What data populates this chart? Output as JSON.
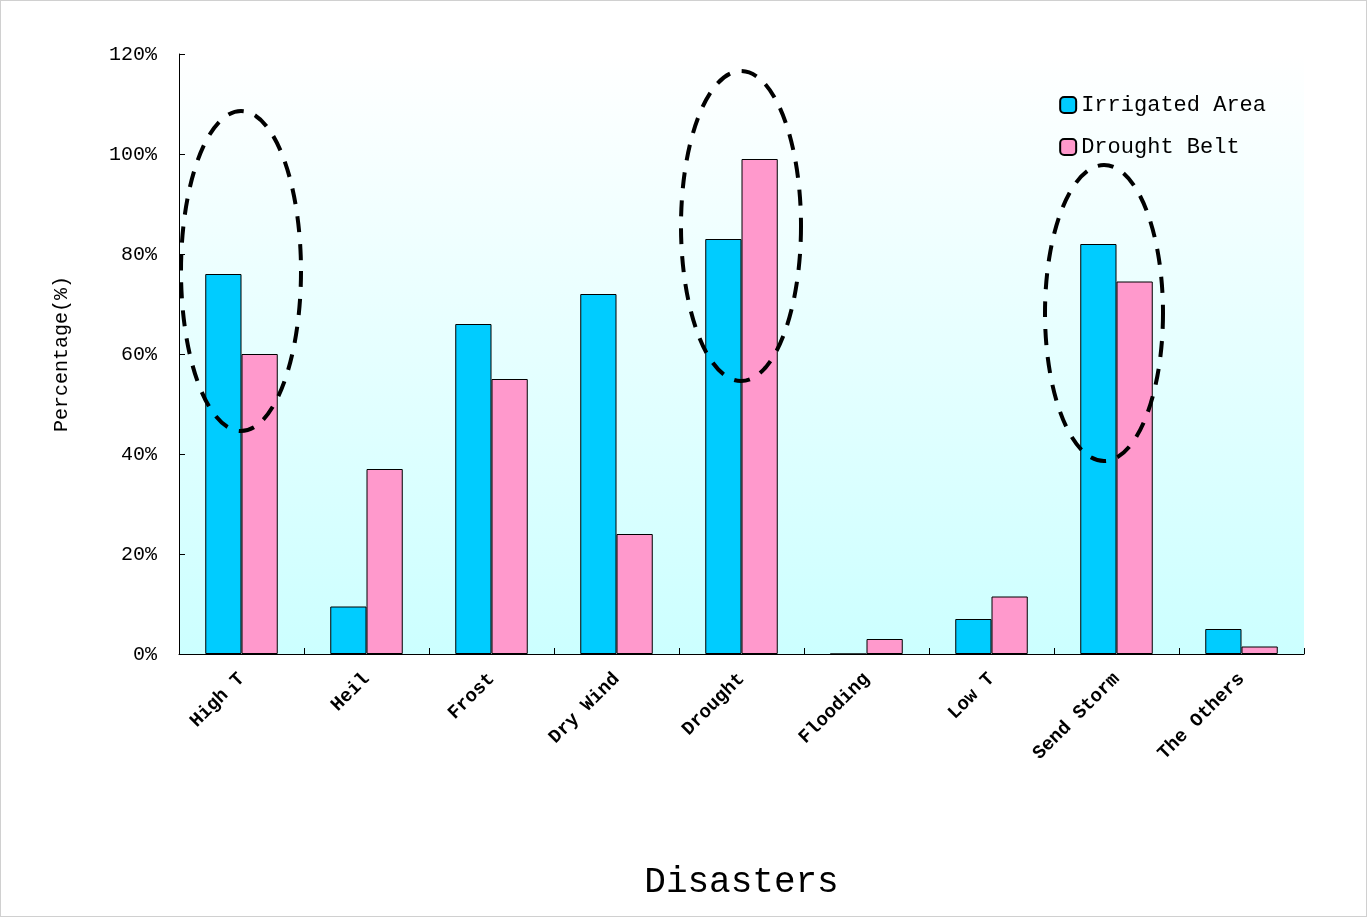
{
  "chart_data": {
    "type": "bar",
    "xlabel": "Disasters",
    "ylabel": "Percentage(%)",
    "categories": [
      "High T",
      "Heil",
      "Frost",
      "Dry Wind",
      "Drought",
      "Flooding",
      "Low T",
      "Send Storm",
      "The Others"
    ],
    "series": [
      {
        "name": "Irrigated Area",
        "color": "#00ccff",
        "values": [
          76,
          9.5,
          66,
          72,
          83,
          0,
          7,
          82,
          5
        ]
      },
      {
        "name": "Drought Belt",
        "color": "#ff99cc",
        "values": [
          60,
          37,
          55,
          24,
          99,
          3,
          11.5,
          74.5,
          1.5
        ]
      }
    ],
    "ylim": [
      0,
      120
    ],
    "yticks": [
      {
        "value": 0,
        "label": "0%"
      },
      {
        "value": 20,
        "label": "20%"
      },
      {
        "value": 40,
        "label": "40%"
      },
      {
        "value": 60,
        "label": "60%"
      },
      {
        "value": 80,
        "label": "80%"
      },
      {
        "value": 100,
        "label": "100%"
      },
      {
        "value": 120,
        "label": "120%"
      }
    ],
    "grid": false,
    "legend": "top right"
  }
}
